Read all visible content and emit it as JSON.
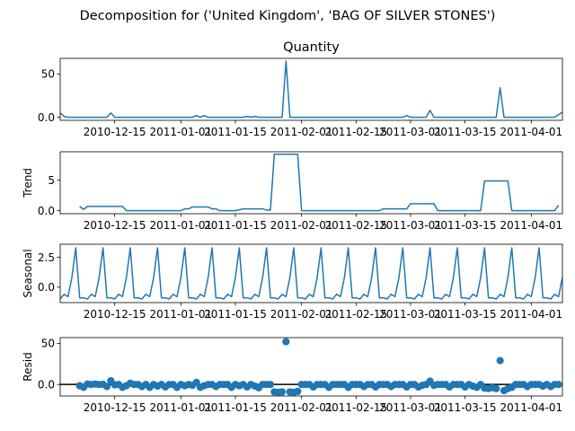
{
  "figure": {
    "suptitle": "Decomposition for ('United Kingdom', 'BAG OF SILVER STONES')"
  },
  "chart_data": [
    {
      "type": "line",
      "title": "Quantity",
      "ylabel": "",
      "xlim": [
        "2010-12-01",
        "2011-04-09"
      ],
      "ylim": [
        -3.5,
        68
      ],
      "yticks": [
        0,
        50
      ],
      "xticks": [
        "2010-12-15",
        "2011-01-01",
        "2011-01-15",
        "2011-02-01",
        "2011-02-15",
        "2011-03-01",
        "2011-03-15",
        "2011-04-01"
      ],
      "color": "#1f77b4",
      "points": [
        [
          "2010-12-01",
          5
        ],
        [
          "2010-12-02",
          1
        ],
        [
          "2010-12-03",
          0
        ],
        [
          "2010-12-13",
          0
        ],
        [
          "2010-12-14",
          5
        ],
        [
          "2010-12-15",
          0
        ],
        [
          "2011-01-04",
          0
        ],
        [
          "2011-01-05",
          2
        ],
        [
          "2011-01-06",
          0
        ],
        [
          "2011-01-07",
          2
        ],
        [
          "2011-01-08",
          0
        ],
        [
          "2011-01-17",
          0
        ],
        [
          "2011-01-18",
          1
        ],
        [
          "2011-01-19",
          0
        ],
        [
          "2011-01-20",
          1
        ],
        [
          "2011-01-21",
          0
        ],
        [
          "2011-01-27",
          0
        ],
        [
          "2011-01-28",
          65
        ],
        [
          "2011-01-29",
          0
        ],
        [
          "2011-02-27",
          0
        ],
        [
          "2011-02-28",
          2
        ],
        [
          "2011-03-01",
          0
        ],
        [
          "2011-03-05",
          0
        ],
        [
          "2011-03-06",
          8
        ],
        [
          "2011-03-07",
          0
        ],
        [
          "2011-03-23",
          0
        ],
        [
          "2011-03-24",
          34
        ],
        [
          "2011-03-25",
          0
        ],
        [
          "2011-04-07",
          0
        ],
        [
          "2011-04-09",
          6
        ]
      ]
    },
    {
      "type": "line",
      "title": "",
      "ylabel": "Trend",
      "xlim": [
        "2010-12-01",
        "2011-04-09"
      ],
      "ylim": [
        -0.5,
        9.7
      ],
      "yticks": [
        0,
        5
      ],
      "xticks": [
        "2010-12-15",
        "2011-01-01",
        "2011-01-15",
        "2011-02-01",
        "2011-02-15",
        "2011-03-01",
        "2011-03-15",
        "2011-04-01"
      ],
      "color": "#1f77b4",
      "points": [
        [
          "2010-12-06",
          0.7
        ],
        [
          "2010-12-07",
          0.2
        ],
        [
          "2010-12-08",
          0.7
        ],
        [
          "2010-12-17",
          0.7
        ],
        [
          "2010-12-18",
          0
        ],
        [
          "2011-01-01",
          0
        ],
        [
          "2011-01-02",
          0.3
        ],
        [
          "2011-01-03",
          0.3
        ],
        [
          "2011-01-04",
          0.6
        ],
        [
          "2011-01-08",
          0.6
        ],
        [
          "2011-01-09",
          0.3
        ],
        [
          "2011-01-10",
          0.3
        ],
        [
          "2011-01-11",
          0
        ],
        [
          "2011-01-15",
          0
        ],
        [
          "2011-01-16",
          0.15
        ],
        [
          "2011-01-17",
          0.3
        ],
        [
          "2011-01-22",
          0.3
        ],
        [
          "2011-01-23",
          0.1
        ],
        [
          "2011-01-24",
          0.1
        ],
        [
          "2011-01-25",
          9.3
        ],
        [
          "2011-01-31",
          9.3
        ],
        [
          "2011-02-01",
          0
        ],
        [
          "2011-02-21",
          0
        ],
        [
          "2011-02-22",
          0.3
        ],
        [
          "2011-02-28",
          0.3
        ],
        [
          "2011-03-01",
          1.15
        ],
        [
          "2011-03-07",
          1.15
        ],
        [
          "2011-03-08",
          0
        ],
        [
          "2011-03-19",
          0
        ],
        [
          "2011-03-20",
          4.9
        ],
        [
          "2011-03-26",
          4.9
        ],
        [
          "2011-03-27",
          0
        ],
        [
          "2011-04-07",
          0
        ],
        [
          "2011-04-08",
          0.9
        ]
      ]
    },
    {
      "type": "line",
      "title": "",
      "ylabel": "Seasonal",
      "xlim": [
        "2010-12-01",
        "2011-04-09"
      ],
      "ylim": [
        -1.3,
        3.6
      ],
      "yticks": [
        0.0,
        2.5
      ],
      "xticks": [
        "2010-12-15",
        "2011-01-01",
        "2011-01-15",
        "2011-02-01",
        "2011-02-15",
        "2011-03-01",
        "2011-03-15",
        "2011-04-01"
      ],
      "color": "#1f77b4",
      "period": 7,
      "cycle": [
        3.3,
        -0.9,
        -0.9,
        -1.0,
        -0.6,
        -0.8,
        0.8
      ],
      "start": "2010-12-01",
      "end": "2011-04-09",
      "first_values": [
        -1.0,
        -0.6,
        -0.8,
        0.8
      ]
    },
    {
      "type": "scatter",
      "title": "",
      "ylabel": "Resid",
      "xlim": [
        "2010-12-01",
        "2011-04-09"
      ],
      "ylim": [
        -14,
        57
      ],
      "yticks": [
        0,
        50
      ],
      "xticks": [
        "2010-12-15",
        "2011-01-01",
        "2011-01-15",
        "2011-02-01",
        "2011-02-15",
        "2011-03-01",
        "2011-03-15",
        "2011-04-01"
      ],
      "color": "#1f77b4",
      "baseline": 0,
      "start": "2010-12-06",
      "end": "2011-04-08",
      "default_value": 0,
      "overrides": {
        "2010-12-06": -1.5,
        "2010-12-07": -3.5,
        "2010-12-08": 0.5,
        "2010-12-10": 0.5,
        "2010-12-12": 0.2,
        "2010-12-13": -2.5,
        "2010-12-14": 4.5,
        "2010-12-15": -0.5,
        "2010-12-17": -3.5,
        "2010-12-18": -1.5,
        "2010-12-19": 1.5,
        "2010-12-22": -2.5,
        "2010-12-24": -3.5,
        "2010-12-26": -2.0,
        "2010-12-28": -3.0,
        "2010-12-31": -3.5,
        "2011-01-02": -1.5,
        "2011-01-04": -1.0,
        "2011-01-05": 2.5,
        "2011-01-06": -3.5,
        "2011-01-07": -1.5,
        "2011-01-10": -2.5,
        "2011-01-14": -3.5,
        "2011-01-16": -1.5,
        "2011-01-18": -3.0,
        "2011-01-20": -2.0,
        "2011-01-21": -4.0,
        "2011-01-25": -9.0,
        "2011-01-26": -9.5,
        "2011-01-27": -9.0,
        "2011-01-28": 52.0,
        "2011-01-29": -9.0,
        "2011-01-30": -9.5,
        "2011-01-31": -8.5,
        "2011-02-04": -3.0,
        "2011-02-08": -3.5,
        "2011-02-13": -3.5,
        "2011-02-17": -2.5,
        "2011-02-20": -3.0,
        "2011-02-24": -2.5,
        "2011-02-28": -3.0,
        "2011-03-03": -3.0,
        "2011-03-04": -1.0,
        "2011-03-06": 4.0,
        "2011-03-07": -1.0,
        "2011-03-11": -3.0,
        "2011-03-15": -3.0,
        "2011-03-17": -2.0,
        "2011-03-18": -3.5,
        "2011-03-20": -4.5,
        "2011-03-21": -5.0,
        "2011-03-22": -4.0,
        "2011-03-23": -5.0,
        "2011-03-24": 29.0,
        "2011-03-25": -7.5,
        "2011-03-26": -5.0,
        "2011-03-27": -3.5,
        "2011-03-31": -2.5,
        "2011-04-04": -2.0,
        "2011-04-06": -2.5
      }
    }
  ]
}
